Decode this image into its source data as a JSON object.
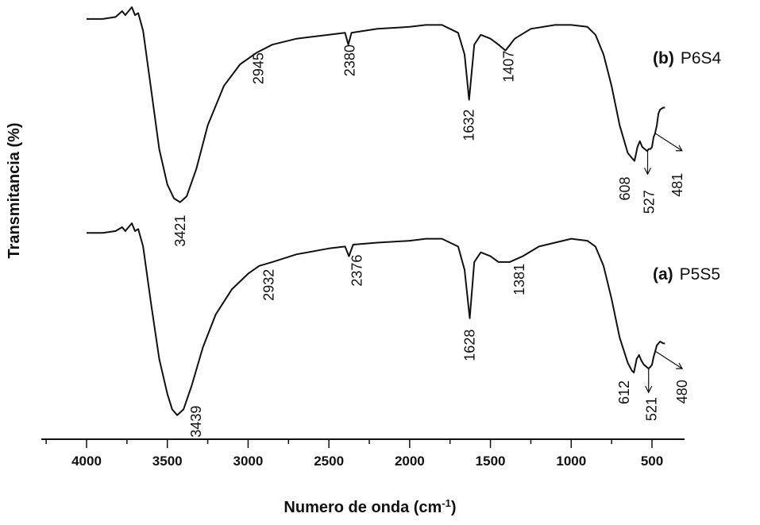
{
  "chart_data": {
    "type": "line",
    "xlabel_main": "Numero de onda (cm",
    "xlabel_sup": "-1",
    "xlabel_end": ")",
    "ylabel": "Transmitancia (%)",
    "xlim": [
      4200,
      400
    ],
    "x_ticks": [
      "4000",
      "3500",
      "3000",
      "2500",
      "2000",
      "1500",
      "1000",
      "500"
    ],
    "x_tick_values": [
      4000,
      3500,
      3000,
      2500,
      2000,
      1500,
      1000,
      500
    ],
    "series": [
      {
        "tag_letter": "(b)",
        "name": "P6S4",
        "x": [
          4000,
          3900,
          3820,
          3780,
          3760,
          3740,
          3720,
          3700,
          3680,
          3650,
          3600,
          3550,
          3500,
          3460,
          3421,
          3380,
          3320,
          3250,
          3150,
          3050,
          2945,
          2850,
          2700,
          2500,
          2400,
          2380,
          2360,
          2200,
          2000,
          1900,
          1800,
          1700,
          1660,
          1632,
          1600,
          1560,
          1500,
          1450,
          1407,
          1350,
          1250,
          1100,
          1000,
          900,
          850,
          800,
          750,
          700,
          650,
          620,
          608,
          590,
          575,
          560,
          545,
          530,
          520,
          510,
          500,
          490,
          481,
          470,
          460,
          450,
          430,
          420
        ],
        "y": [
          0.96,
          0.96,
          0.97,
          1.0,
          0.98,
          1.0,
          1.02,
          0.98,
          0.99,
          0.9,
          0.6,
          0.3,
          0.12,
          0.05,
          0.03,
          0.06,
          0.2,
          0.42,
          0.62,
          0.73,
          0.79,
          0.83,
          0.86,
          0.88,
          0.89,
          0.83,
          0.89,
          0.91,
          0.92,
          0.93,
          0.93,
          0.89,
          0.78,
          0.55,
          0.83,
          0.88,
          0.86,
          0.83,
          0.8,
          0.86,
          0.91,
          0.93,
          0.93,
          0.92,
          0.88,
          0.78,
          0.62,
          0.42,
          0.28,
          0.25,
          0.24,
          0.31,
          0.34,
          0.31,
          0.3,
          0.29,
          0.3,
          0.3,
          0.31,
          0.36,
          0.38,
          0.42,
          0.48,
          0.5,
          0.51,
          0.51
        ],
        "peaks": [
          {
            "label": "3421",
            "x": 3421
          },
          {
            "label": "2945",
            "x": 2945
          },
          {
            "label": "2380",
            "x": 2380
          },
          {
            "label": "1632",
            "x": 1632
          },
          {
            "label": "1407",
            "x": 1407
          },
          {
            "label": "608",
            "x": 608
          },
          {
            "label": "527",
            "x": 527
          },
          {
            "label": "481",
            "x": 481
          }
        ]
      },
      {
        "tag_letter": "(a)",
        "name": "P5S5",
        "x": [
          4000,
          3900,
          3820,
          3780,
          3760,
          3740,
          3720,
          3700,
          3680,
          3650,
          3600,
          3550,
          3500,
          3470,
          3439,
          3400,
          3350,
          3280,
          3200,
          3100,
          3000,
          2932,
          2850,
          2700,
          2500,
          2400,
          2376,
          2350,
          2200,
          2000,
          1900,
          1800,
          1700,
          1660,
          1628,
          1600,
          1560,
          1500,
          1450,
          1381,
          1300,
          1200,
          1100,
          1000,
          900,
          850,
          800,
          750,
          700,
          650,
          625,
          612,
          595,
          580,
          565,
          550,
          535,
          521,
          510,
          500,
          490,
          480,
          470,
          460,
          450,
          430,
          420
        ],
        "y": [
          0.97,
          0.97,
          0.98,
          1.0,
          0.98,
          1.0,
          1.02,
          0.98,
          0.99,
          0.9,
          0.6,
          0.32,
          0.14,
          0.06,
          0.03,
          0.06,
          0.18,
          0.38,
          0.55,
          0.68,
          0.76,
          0.8,
          0.82,
          0.86,
          0.89,
          0.9,
          0.85,
          0.91,
          0.92,
          0.93,
          0.94,
          0.94,
          0.9,
          0.78,
          0.53,
          0.82,
          0.87,
          0.85,
          0.82,
          0.82,
          0.85,
          0.9,
          0.92,
          0.94,
          0.93,
          0.9,
          0.8,
          0.63,
          0.43,
          0.3,
          0.26,
          0.25,
          0.32,
          0.34,
          0.31,
          0.29,
          0.28,
          0.27,
          0.28,
          0.29,
          0.33,
          0.36,
          0.39,
          0.4,
          0.41,
          0.4,
          0.4
        ],
        "peaks": [
          {
            "label": "3439",
            "x": 3439
          },
          {
            "label": "2932",
            "x": 2932
          },
          {
            "label": "2376",
            "x": 2376
          },
          {
            "label": "1628",
            "x": 1628
          },
          {
            "label": "1381",
            "x": 1381
          },
          {
            "label": "612",
            "x": 612
          },
          {
            "label": "521",
            "x": 521
          },
          {
            "label": "480",
            "x": 480
          }
        ]
      }
    ]
  }
}
